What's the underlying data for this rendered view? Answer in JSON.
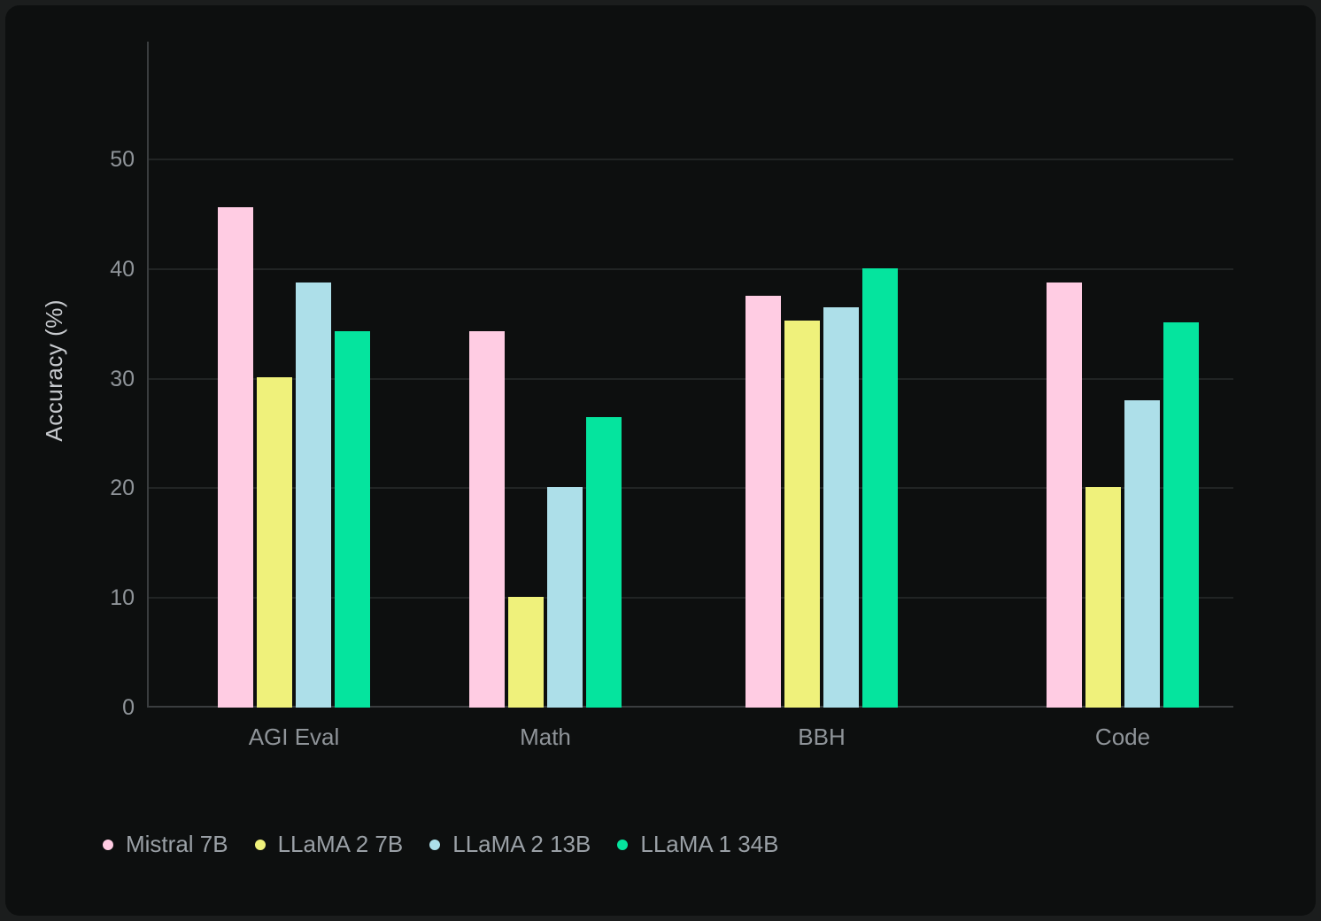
{
  "chart_data": {
    "type": "bar",
    "title": "",
    "xlabel": "",
    "ylabel": "Accuracy (%)",
    "categories": [
      "AGI Eval",
      "Math",
      "BBH",
      "Code"
    ],
    "series": [
      {
        "name": "Mistral 7B",
        "color": "#ffcce3",
        "values": [
          45.6,
          34.3,
          37.6,
          38.8
        ]
      },
      {
        "name": "LLaMA 2 7B",
        "color": "#eff17b",
        "values": [
          30.1,
          10.1,
          35.3,
          20.1
        ]
      },
      {
        "name": "LLaMA 2 13B",
        "color": "#addfe9",
        "values": [
          38.8,
          20.1,
          36.5,
          28.0
        ]
      },
      {
        "name": "LLaMA 1 34B",
        "color": "#05e49e",
        "values": [
          34.3,
          26.5,
          40.1,
          35.1
        ]
      }
    ],
    "yticks": [
      0,
      10,
      20,
      30,
      40,
      50
    ],
    "ylim": [
      0,
      60
    ],
    "grid": true,
    "legend_position": "bottom-left"
  }
}
